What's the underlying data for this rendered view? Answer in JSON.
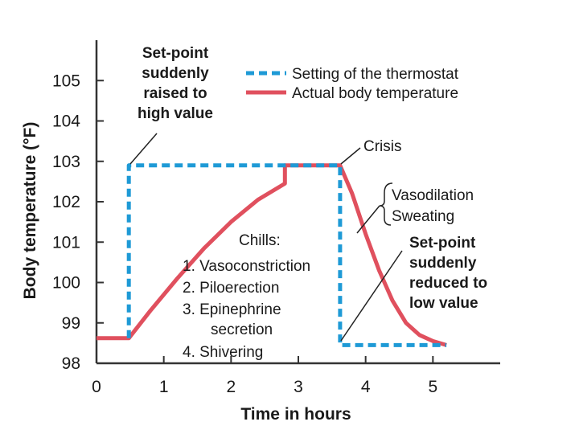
{
  "chart_data": {
    "type": "line",
    "xlabel": "Time in hours",
    "ylabel": "Body temperature (°F)",
    "xlim": [
      0,
      6
    ],
    "ylim": [
      98,
      106
    ],
    "xticks": [
      "0",
      "1",
      "2",
      "3",
      "4",
      "5"
    ],
    "yticks": [
      "98",
      "99",
      "100",
      "101",
      "102",
      "103",
      "104",
      "105"
    ],
    "legend_position": "top-right",
    "series": [
      {
        "name": "Setting of the thermostat",
        "color": "#1e9ad6",
        "style": "dashed",
        "points": [
          [
            0.48,
            98.62
          ],
          [
            0.48,
            102.9
          ],
          [
            3.62,
            102.9
          ],
          [
            3.62,
            98.45
          ],
          [
            5.2,
            98.45
          ]
        ]
      },
      {
        "name": "Actual body temperature",
        "color": "#e0505e",
        "style": "solid",
        "points": [
          [
            0,
            98.62
          ],
          [
            0.48,
            98.62
          ],
          [
            0.8,
            99.3
          ],
          [
            1.2,
            100.1
          ],
          [
            1.6,
            100.85
          ],
          [
            2.0,
            101.5
          ],
          [
            2.4,
            102.05
          ],
          [
            2.8,
            102.45
          ],
          [
            2.8,
            102.9
          ],
          [
            3.62,
            102.9
          ],
          [
            3.8,
            102.2
          ],
          [
            4.0,
            101.2
          ],
          [
            4.2,
            100.3
          ],
          [
            4.4,
            99.55
          ],
          [
            4.6,
            99.0
          ],
          [
            4.8,
            98.7
          ],
          [
            5.0,
            98.55
          ],
          [
            5.2,
            98.45
          ]
        ]
      }
    ],
    "annotations": {
      "raised": [
        "Set-point",
        "suddenly",
        "raised to",
        "high value"
      ],
      "crisis": "Crisis",
      "vasodilation": [
        "Vasodilation",
        "Sweating"
      ],
      "reduced": [
        "Set-point",
        "suddenly",
        "reduced to",
        "low value"
      ],
      "chills_title": "Chills:",
      "chills": [
        "1. Vasoconstriction",
        "2. Piloerection",
        "3. Epinephrine",
        "secretion",
        "4. Shivering"
      ]
    }
  }
}
